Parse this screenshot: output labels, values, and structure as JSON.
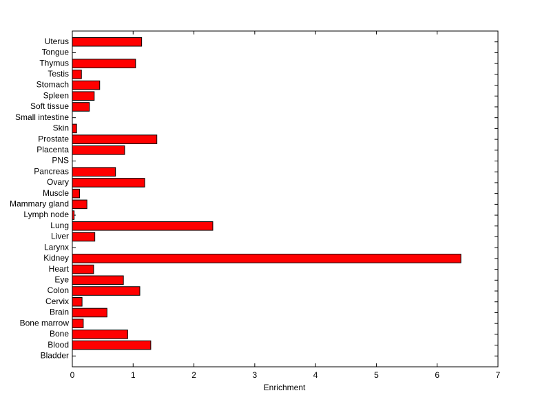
{
  "chart_data": {
    "type": "barh",
    "xlabel": "Enrichment",
    "categories": [
      "Bladder",
      "Blood",
      "Bone",
      "Bone marrow",
      "Brain",
      "Cervix",
      "Colon",
      "Eye",
      "Heart",
      "Kidney",
      "Larynx",
      "Liver",
      "Lung",
      "Lymph node",
      "Mammary gland",
      "Muscle",
      "Ovary",
      "Pancreas",
      "PNS",
      "Placenta",
      "Prostate",
      "Skin",
      "Small intestine",
      "Soft tissue",
      "Spleen",
      "Stomach",
      "Testis",
      "Thymus",
      "Tongue",
      "Uterus"
    ],
    "values": [
      0,
      1.29,
      0.91,
      0.18,
      0.57,
      0.16,
      1.11,
      0.84,
      0.35,
      6.39,
      0,
      0.37,
      2.31,
      0.03,
      0.24,
      0.12,
      1.19,
      0.71,
      0,
      0.86,
      1.39,
      0.07,
      0,
      0.28,
      0.36,
      0.45,
      0.15,
      1.04,
      0,
      1.14
    ],
    "color": "#ff0000",
    "xlim": [
      0,
      7
    ],
    "xticks": [
      0,
      1,
      2,
      3,
      4,
      5,
      6,
      7
    ]
  }
}
